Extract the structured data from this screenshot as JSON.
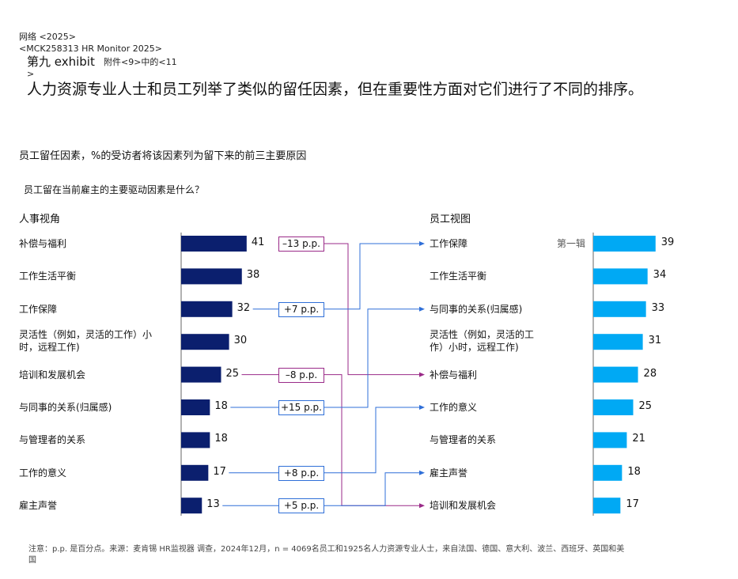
{
  "header": {
    "line1": "网络 <2025>",
    "line2": "<MCK258313 HR Monitor 2025>",
    "exhibit": "第九 exhibit",
    "exhibit_note": "附件<9>中的<11",
    "exhibit_note2": ">"
  },
  "title": "人力资源专业人士和员工列举了类似的留任因素，但在重要性方面对它们进行了不同的排序。",
  "subtitle": "员工留任因素，%的受访者将该因素列为留下来的前三主要原因",
  "question": "员工留在当前雇主的主要驱动因素是什么？",
  "chart_data": {
    "type": "bar",
    "colors": {
      "hr": "#0b1f6e",
      "employee": "#00a9f4",
      "decrease": "#9a2a88",
      "increase": "#2f6fd8"
    },
    "hr": {
      "title": "人事视角",
      "categories": [
        "补偿与福利",
        "工作生活平衡",
        "工作保障",
        "灵活性（例如，灵活的工作）小时，远程工作)",
        "培训和发展机会",
        "与同事的关系(归属感)",
        "与管理者的关系",
        "工作的意义",
        "雇主声誉"
      ],
      "values": [
        41,
        38,
        32,
        30,
        25,
        18,
        18,
        17,
        13
      ]
    },
    "employee": {
      "title": "员工视图",
      "categories": [
        "工作保障",
        "工作生活平衡",
        "与同事的关系(归属感)",
        "灵活性（例如，灵活的工作）小时，远程工作)",
        "补偿与福利",
        "工作的意义",
        "与管理者的关系",
        "雇主声誉",
        "培训和发展机会"
      ],
      "values": [
        39,
        34,
        33,
        31,
        28,
        25,
        21,
        18,
        17
      ],
      "first_label": "第一辑"
    },
    "changes": [
      {
        "from": 0,
        "to": 4,
        "label": "–13 p.p.",
        "dir": "down"
      },
      {
        "from": 2,
        "to": 0,
        "label": "+7 p.p.",
        "dir": "up"
      },
      {
        "from": 4,
        "to": 8,
        "label": "–8 p.p.",
        "dir": "down"
      },
      {
        "from": 5,
        "to": 2,
        "label": "+15 p.p.",
        "dir": "up"
      },
      {
        "from": 7,
        "to": 5,
        "label": "+8 p.p.",
        "dir": "up"
      },
      {
        "from": 8,
        "to": 7,
        "label": "+5 p.p.",
        "dir": "up"
      }
    ],
    "xlim": [
      0,
      45
    ]
  },
  "footnote": "注意：p.p. 是百分点。来源：麦肯锡 HR监视器 调查，2024年12月，n = 4069名员工和1925名人力资源专业人士，来自法国、德国、意大利、波兰、西班牙、英国和美国"
}
